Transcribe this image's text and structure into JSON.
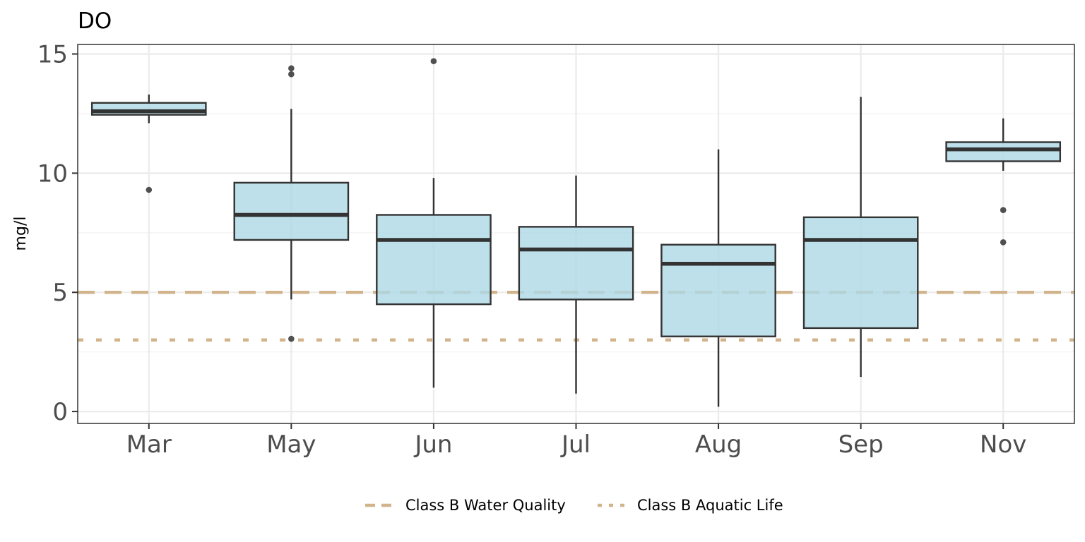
{
  "chart_data": {
    "type": "box",
    "title": "DO",
    "xlabel": "",
    "ylabel": "mg/l",
    "ylim": [
      -0.5,
      15.4
    ],
    "yticks": [
      0,
      5,
      10,
      15
    ],
    "ytick_labels": [
      "0",
      "5",
      "10",
      "15"
    ],
    "grid": "on",
    "categories": [
      "Mar",
      "May",
      "Jun",
      "Jul",
      "Aug",
      "Sep",
      "Nov"
    ],
    "boxes": [
      {
        "category": "Mar",
        "whisker_low": 12.1,
        "q1": 12.45,
        "median": 12.6,
        "q3": 12.95,
        "whisker_high": 13.3,
        "outliers": [
          9.3
        ]
      },
      {
        "category": "May",
        "whisker_low": 4.7,
        "q1": 7.2,
        "median": 8.25,
        "q3": 9.6,
        "whisker_high": 12.7,
        "outliers": [
          14.4,
          14.15,
          3.05
        ]
      },
      {
        "category": "Jun",
        "whisker_low": 1.0,
        "q1": 4.5,
        "median": 7.2,
        "q3": 8.25,
        "whisker_high": 9.8,
        "outliers": [
          14.7
        ]
      },
      {
        "category": "Jul",
        "whisker_low": 0.75,
        "q1": 4.7,
        "median": 6.8,
        "q3": 7.75,
        "whisker_high": 9.9,
        "outliers": []
      },
      {
        "category": "Aug",
        "whisker_low": 0.2,
        "q1": 3.15,
        "median": 6.2,
        "q3": 7.0,
        "whisker_high": 11.0,
        "outliers": []
      },
      {
        "category": "Sep",
        "whisker_low": 1.45,
        "q1": 3.5,
        "median": 7.2,
        "q3": 8.15,
        "whisker_high": 13.2,
        "outliers": []
      },
      {
        "category": "Nov",
        "whisker_low": 10.1,
        "q1": 10.5,
        "median": 11.0,
        "q3": 11.3,
        "whisker_high": 12.3,
        "outliers": [
          8.45,
          7.1
        ]
      }
    ],
    "reference_lines": [
      {
        "name": "Class B Water Quality",
        "value": 5,
        "style": "dashed",
        "color": "#d2b48c"
      },
      {
        "name": "Class B Aquatic Life",
        "value": 3,
        "style": "dotted",
        "color": "#d2b48c"
      }
    ],
    "box_fill": "#add8e6",
    "legend_position": "bottom"
  }
}
